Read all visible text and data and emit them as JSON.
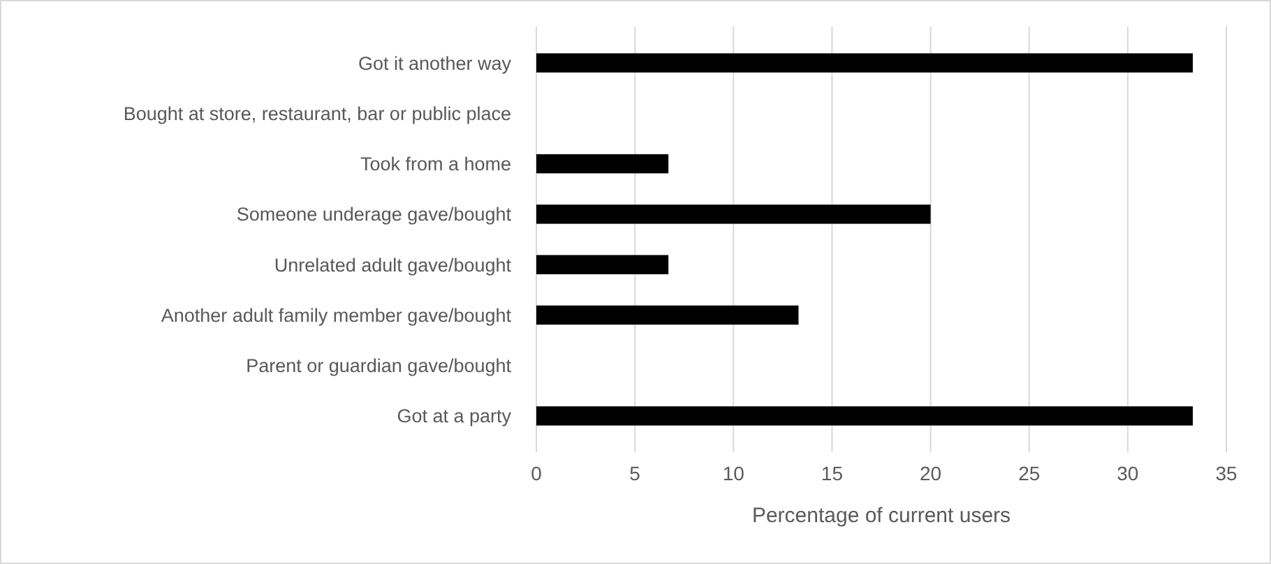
{
  "chart_data": {
    "type": "bar",
    "orientation": "horizontal",
    "xlabel": "Percentage of current users",
    "categories": [
      "Got it another way",
      "Bought at store, restaurant, bar or public place",
      "Took from a home",
      "Someone underage gave/bought",
      "Unrelated adult gave/bought",
      "Another adult family member gave/bought",
      "Parent or guardian gave/bought",
      "Got at a party"
    ],
    "values": [
      33.3,
      0,
      6.7,
      20,
      6.7,
      13.3,
      0,
      33.3
    ],
    "color": "#000000",
    "xlim": [
      0,
      35
    ],
    "xticks": [
      0,
      5,
      10,
      15,
      20,
      25,
      30,
      35
    ],
    "grid": "x"
  }
}
